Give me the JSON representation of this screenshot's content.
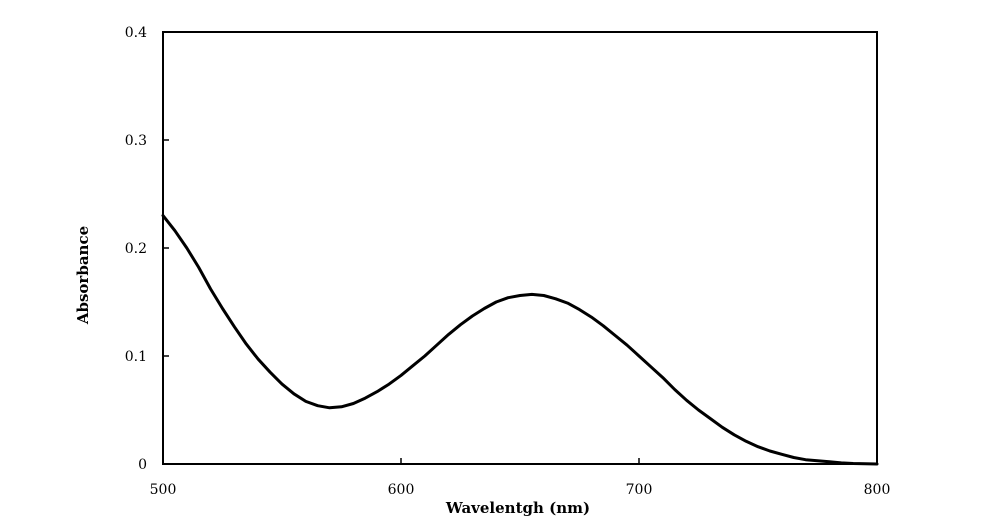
{
  "chart_data": {
    "type": "line",
    "title": "",
    "xlabel": "Wavelentgh (nm)",
    "ylabel": "Absorbance",
    "xlim": [
      500,
      800
    ],
    "ylim": [
      0,
      0.4
    ],
    "x_ticks": [
      500,
      600,
      700,
      800
    ],
    "x_tick_labels": [
      "500",
      "600",
      "700",
      "800"
    ],
    "y_ticks": [
      0,
      0.1,
      0.2,
      0.3,
      0.4
    ],
    "y_tick_labels": [
      "0",
      "0.1",
      "0.2",
      "0.3",
      "0.4"
    ],
    "grid": false,
    "legend": "none",
    "series": [
      {
        "color": "#000000",
        "x": [
          500,
          505,
          510,
          515,
          520,
          525,
          530,
          535,
          540,
          545,
          550,
          555,
          560,
          565,
          570,
          575,
          580,
          585,
          590,
          595,
          600,
          605,
          610,
          615,
          620,
          625,
          630,
          635,
          640,
          645,
          650,
          655,
          660,
          665,
          670,
          675,
          680,
          685,
          690,
          695,
          700,
          705,
          710,
          715,
          720,
          725,
          730,
          735,
          740,
          745,
          750,
          755,
          760,
          765,
          770,
          775,
          780,
          785,
          790,
          795,
          800
        ],
        "y": [
          0.23,
          0.216,
          0.2,
          0.182,
          0.162,
          0.144,
          0.127,
          0.111,
          0.097,
          0.085,
          0.074,
          0.065,
          0.058,
          0.054,
          0.052,
          0.053,
          0.056,
          0.061,
          0.067,
          0.074,
          0.082,
          0.091,
          0.1,
          0.11,
          0.12,
          0.129,
          0.137,
          0.144,
          0.15,
          0.154,
          0.156,
          0.157,
          0.156,
          0.153,
          0.149,
          0.143,
          0.136,
          0.128,
          0.119,
          0.11,
          0.1,
          0.09,
          0.08,
          0.069,
          0.059,
          0.05,
          0.042,
          0.034,
          0.027,
          0.021,
          0.016,
          0.012,
          0.009,
          0.006,
          0.004,
          0.003,
          0.002,
          0.001,
          0.0005,
          0.0002,
          0.0
        ]
      }
    ]
  }
}
